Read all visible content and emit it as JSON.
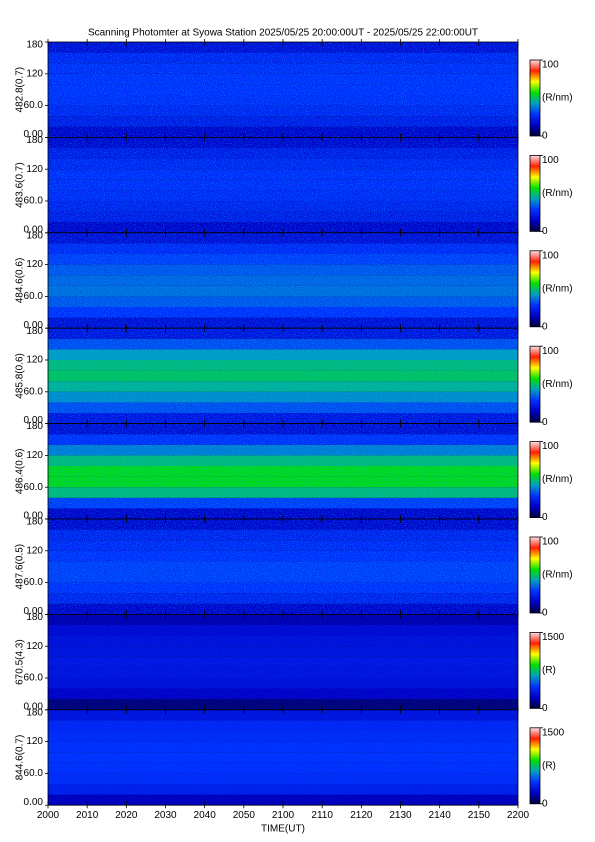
{
  "chart_data": {
    "type": "heatmap",
    "title": "Scanning Photomter at Syowa Station  2025/05/25 20:00:00UT - 2025/05/25 22:00:00UT",
    "x_label": "TIME(UT)",
    "xtick_labels": [
      "2000",
      "2010",
      "2020",
      "2030",
      "2040",
      "2050",
      "2100",
      "2110",
      "2120",
      "2130",
      "2140",
      "2150",
      "2200"
    ],
    "colormap": [
      "#00003c",
      "#0000c8",
      "#0030ff",
      "#00a0c0",
      "#00e000",
      "#ffff00",
      "#ff2000",
      "#ffe0e8"
    ],
    "panels": [
      {
        "y_label": "482.8(0.7)",
        "clim": [
          0,
          100
        ],
        "cticks": [
          0,
          100
        ],
        "c_label": "(R/nm)",
        "ylim": [
          0,
          180
        ],
        "yticks": [
          {
            "value": 0,
            "label": "0.00"
          },
          {
            "value": 60,
            "label": "60.0"
          },
          120,
          180
        ],
        "y": [
          10,
          30,
          50,
          70,
          90,
          110,
          130,
          150,
          170
        ],
        "values": [
          15,
          22,
          25,
          27,
          28,
          28,
          27,
          25,
          18
        ]
      },
      {
        "y_label": "483.6(0.7)",
        "clim": [
          0,
          100
        ],
        "cticks": [
          0,
          100
        ],
        "c_label": "(R/nm)",
        "ylim": [
          0,
          180
        ],
        "yticks": [
          {
            "value": 0,
            "label": "0.00"
          },
          {
            "value": 60,
            "label": "60.0"
          },
          120,
          180
        ],
        "y": [
          10,
          30,
          50,
          70,
          90,
          110,
          130,
          150,
          170
        ],
        "values": [
          15,
          22,
          24,
          26,
          27,
          27,
          25,
          22,
          16
        ]
      },
      {
        "y_label": "484.6(0.6)",
        "clim": [
          0,
          100
        ],
        "cticks": [
          0,
          100
        ],
        "c_label": "(R/nm)",
        "ylim": [
          0,
          180
        ],
        "yticks": [
          {
            "value": 0,
            "label": "0.00"
          },
          {
            "value": 60,
            "label": "60.0"
          },
          120,
          180
        ],
        "y": [
          10,
          30,
          50,
          70,
          90,
          110,
          130,
          150,
          170
        ],
        "values": [
          18,
          28,
          33,
          36,
          35,
          33,
          30,
          26,
          18
        ]
      },
      {
        "y_label": "485.8(0.6)",
        "clim": [
          0,
          100
        ],
        "cticks": [
          0,
          100
        ],
        "c_label": "(R/nm)",
        "ylim": [
          0,
          180
        ],
        "yticks": [
          {
            "value": 0,
            "label": "0.00"
          },
          {
            "value": 60,
            "label": "60.0"
          },
          120,
          180
        ],
        "y": [
          10,
          30,
          50,
          70,
          90,
          110,
          130,
          150,
          170
        ],
        "values": [
          20,
          32,
          40,
          46,
          50,
          48,
          42,
          32,
          20
        ]
      },
      {
        "y_label": "486.4(0.6)",
        "clim": [
          0,
          100
        ],
        "cticks": [
          0,
          100
        ],
        "c_label": "(R/nm)",
        "ylim": [
          0,
          180
        ],
        "yticks": [
          {
            "value": 0,
            "label": "0.00"
          },
          {
            "value": 60,
            "label": "60.0"
          },
          120,
          180
        ],
        "y": [
          10,
          30,
          50,
          70,
          90,
          110,
          130,
          150,
          170
        ],
        "values": [
          15,
          30,
          48,
          55,
          55,
          48,
          38,
          28,
          18
        ]
      },
      {
        "y_label": "487.6(0.5)",
        "clim": [
          0,
          100
        ],
        "cticks": [
          0,
          100
        ],
        "c_label": "(R/nm)",
        "ylim": [
          0,
          180
        ],
        "yticks": [
          {
            "value": 0,
            "label": "0.00"
          },
          {
            "value": 60,
            "label": "60.0"
          },
          120,
          180
        ],
        "y": [
          10,
          30,
          50,
          70,
          90,
          110,
          130,
          150,
          170
        ],
        "values": [
          15,
          24,
          28,
          30,
          30,
          28,
          26,
          24,
          16
        ]
      },
      {
        "y_label": "670.5(4.3)",
        "clim": [
          0,
          1500
        ],
        "cticks": [
          0,
          1500
        ],
        "c_label": "(R)",
        "ylim": [
          0,
          180
        ],
        "yticks": [
          {
            "value": 0,
            "label": "0.00"
          },
          {
            "value": 60,
            "label": "60.0"
          },
          120,
          180
        ],
        "y": [
          10,
          30,
          50,
          70,
          90,
          110,
          130,
          150,
          170
        ],
        "values": [
          100,
          220,
          280,
          300,
          310,
          300,
          290,
          260,
          180
        ]
      },
      {
        "y_label": "844.6(0.7)",
        "clim": [
          0,
          1500
        ],
        "cticks": [
          0,
          1500
        ],
        "c_label": "(R)",
        "ylim": [
          0,
          180
        ],
        "yticks": [
          {
            "value": 0,
            "label": "0.00"
          },
          {
            "value": 60,
            "label": "60.0"
          },
          120,
          180
        ],
        "y": [
          10,
          30,
          50,
          70,
          90,
          110,
          130,
          150,
          170
        ],
        "values": [
          200,
          350,
          400,
          420,
          430,
          420,
          400,
          380,
          300
        ]
      }
    ]
  }
}
